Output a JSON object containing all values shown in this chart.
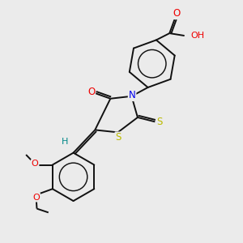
{
  "bg_color": "#ebebeb",
  "atom_colors": {
    "C": "#000000",
    "N": "#0000ee",
    "O": "#ee0000",
    "S": "#bbbb00",
    "H": "#008888"
  },
  "bond_color": "#111111"
}
